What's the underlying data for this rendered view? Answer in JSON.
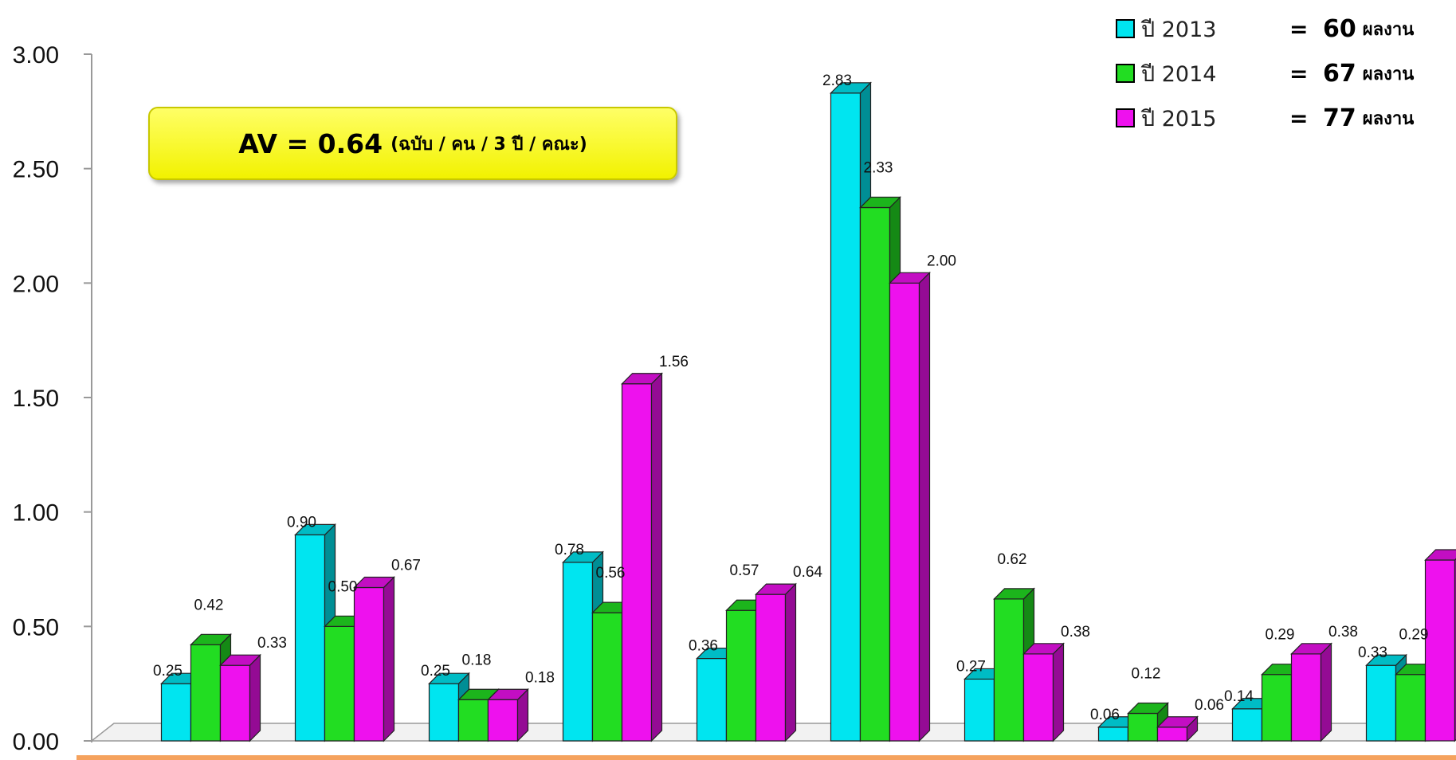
{
  "chart_data": {
    "type": "bar",
    "title": "",
    "xlabel": "",
    "ylabel": "",
    "ylim": [
      0,
      3.0
    ],
    "y_ticks": [
      "0.00",
      "0.50",
      "1.00",
      "1.50",
      "2.00",
      "2.50",
      "3.00"
    ],
    "categories": [
      "",
      "",
      "",
      "",
      "",
      "",
      "",
      "",
      "",
      ""
    ],
    "series": [
      {
        "name": "ปี 2013",
        "color": "#00e5f0",
        "values": [
          0.25,
          0.9,
          0.25,
          0.78,
          0.36,
          2.83,
          0.27,
          0.06,
          0.14,
          0.33
        ],
        "labels": [
          "0.25",
          "0.90",
          "0.25",
          "0.78",
          "0.36",
          "2.83",
          "0.27",
          "0.06",
          "0.14",
          "0.33"
        ]
      },
      {
        "name": "ปี 2014",
        "color": "#22dd22",
        "values": [
          0.42,
          0.5,
          0.18,
          0.56,
          0.57,
          2.33,
          0.62,
          0.12,
          0.29,
          0.29
        ],
        "labels": [
          "0.42",
          "0.50",
          "0.18",
          "0.56",
          "0.57",
          "2.33",
          "0.62",
          "0.12",
          "0.29",
          "0.29"
        ]
      },
      {
        "name": "ปี 2015",
        "color": "#ee11ee",
        "values": [
          0.33,
          0.67,
          0.18,
          1.56,
          0.64,
          2.0,
          0.38,
          0.06,
          0.38,
          0.79
        ],
        "labels": [
          "0.33",
          "0.67",
          "0.18",
          "1.56",
          "0.64",
          "2.00",
          "0.38",
          "0.06",
          "0.38",
          "0.79"
        ]
      }
    ],
    "legend_position": "top-right",
    "grid": false
  },
  "annotation": {
    "main": "AV = 0.64",
    "sub": "(ฉบับ / คน / 3 ปี / คณะ)"
  },
  "legend": [
    {
      "year": "ปี 2013",
      "eq": "=",
      "count": "60",
      "unit": "ผลงาน",
      "color": "#00e5f0"
    },
    {
      "year": "ปี 2014",
      "eq": "=",
      "count": "67",
      "unit": "ผลงาน",
      "color": "#22dd22"
    },
    {
      "year": "ปี 2015",
      "eq": "=",
      "count": "77",
      "unit": "ผลงาน",
      "color": "#ee11ee"
    }
  ],
  "colors": {
    "bottom_strip": "#f5a25d",
    "axis": "#999999"
  }
}
